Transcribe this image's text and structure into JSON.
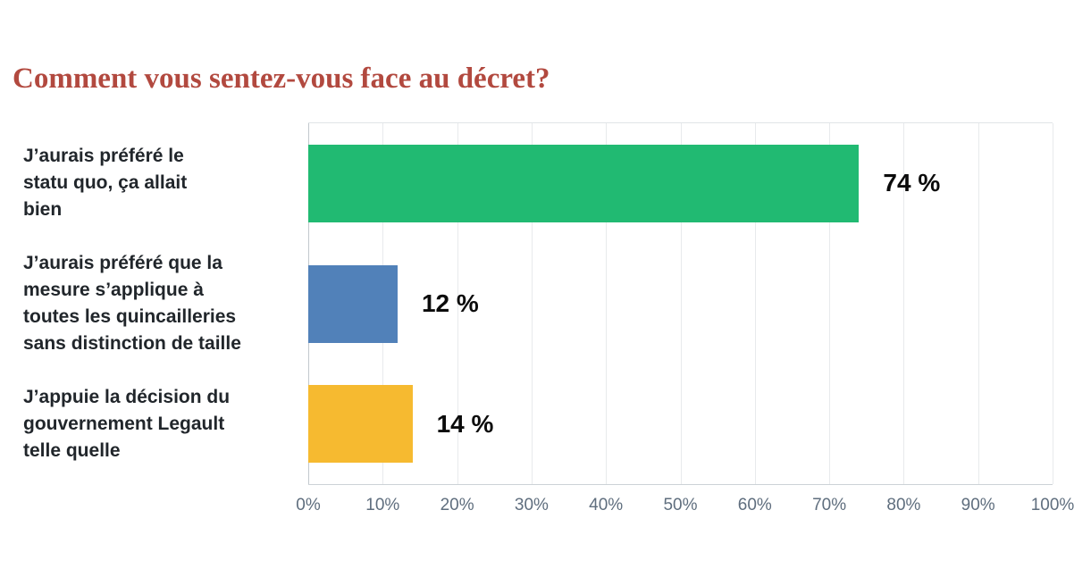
{
  "title": "Comment vous sentez-vous face au décret?",
  "chart_data": {
    "type": "bar",
    "orientation": "horizontal",
    "title": "Comment vous sentez-vous face au décret?",
    "categories": [
      "J’aurais préféré le statu quo, ça allait bien",
      "J’aurais préféré que la mesure s’applique à toutes les quincailleries sans distinction de taille",
      "J’appuie la décision du gouvernement Legault telle quelle"
    ],
    "category_lines": [
      [
        "J’aurais préféré le",
        "statu quo, ça allait",
        "bien"
      ],
      [
        "J’aurais préféré que la",
        "mesure s’applique à",
        "toutes les quincailleries",
        "sans distinction de taille"
      ],
      [
        "J’appuie la décision du",
        "gouvernement Legault",
        "telle quelle"
      ]
    ],
    "values": [
      74,
      12,
      14
    ],
    "value_labels": [
      "74 %",
      "12 %",
      "14 %"
    ],
    "bar_colors": [
      "#21ba72",
      "#5181b9",
      "#f6ba30"
    ],
    "xlabel": "",
    "ylabel": "",
    "xlim": [
      0,
      100
    ],
    "x_ticks": [
      "0%",
      "10%",
      "20%",
      "30%",
      "40%",
      "50%",
      "60%",
      "70%",
      "80%",
      "90%",
      "100%"
    ],
    "grid": "vertical",
    "legend": "none"
  },
  "colors": {
    "title_text": "#b2493f",
    "category_text": "#21262b",
    "value_text": "#0b0b0b",
    "tick_text": "#5f6e7e",
    "gridline": "#e8eaec",
    "axis_line": "#ccd2d7",
    "background": "#ffffff"
  }
}
